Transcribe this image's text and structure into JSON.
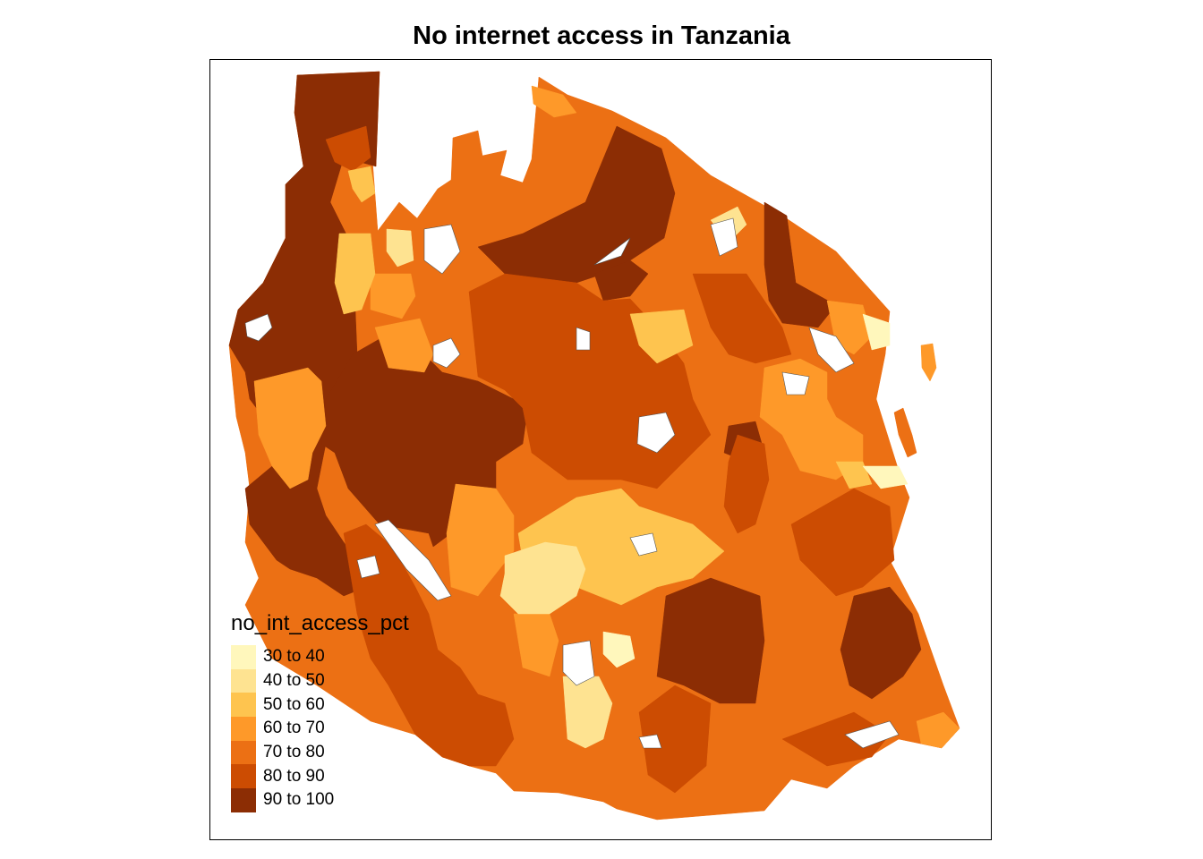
{
  "title": "No internet access in Tanzania",
  "legend": {
    "title": "no_int_access_pct",
    "classes": [
      {
        "label": "30 to 40",
        "color": "#FFF7BC"
      },
      {
        "label": "40 to 50",
        "color": "#FEE391"
      },
      {
        "label": "50 to 60",
        "color": "#FEC44F"
      },
      {
        "label": "60 to 70",
        "color": "#FE9929"
      },
      {
        "label": "70 to 80",
        "color": "#EC7014"
      },
      {
        "label": "80 to 90",
        "color": "#CC4C02"
      },
      {
        "label": "90 to 100",
        "color": "#8C2D04"
      }
    ]
  }
}
